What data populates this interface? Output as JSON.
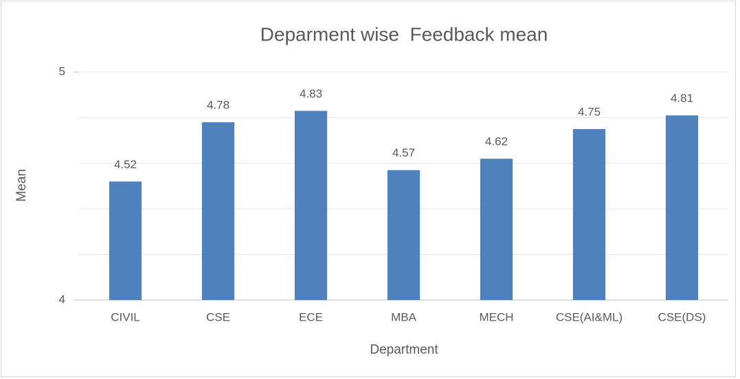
{
  "chart_data": {
    "type": "bar",
    "title": "Deparment wise  Feedback mean",
    "x_label": "Department",
    "y_label": "Mean",
    "categories": [
      "CIVIL",
      "CSE",
      "ECE",
      "MBA",
      "MECH",
      "CSE(AI&ML)",
      "CSE(DS)"
    ],
    "values": [
      4.52,
      4.78,
      4.83,
      4.57,
      4.62,
      4.75,
      4.81
    ],
    "color": "#4f81bd",
    "ylim": [
      4,
      5
    ],
    "yticks": [
      4,
      5
    ],
    "ygrid": [
      4,
      4.2,
      4.4,
      4.6,
      4.8,
      5
    ],
    "grid": true
  }
}
